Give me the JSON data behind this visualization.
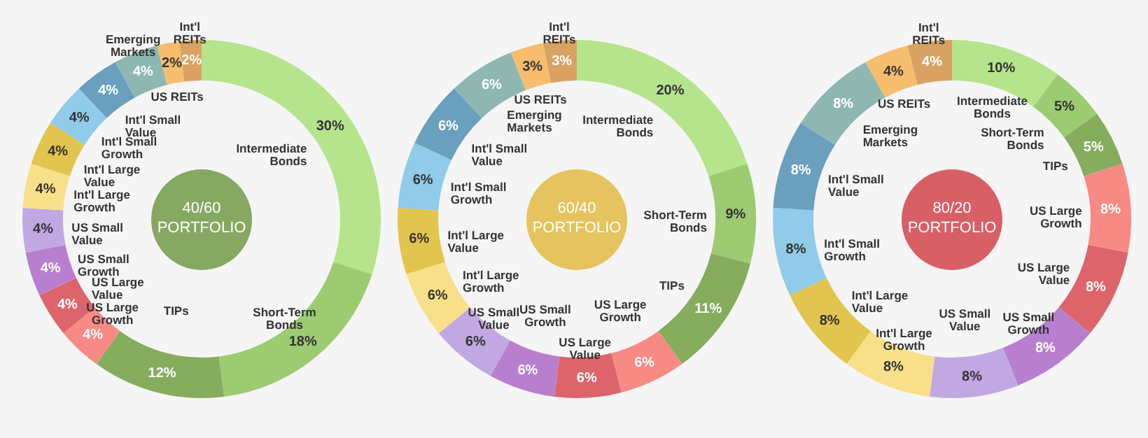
{
  "chart_data": [
    {
      "type": "donut",
      "title": "40/60",
      "subtitle": "PORTFOLIO",
      "categories": [
        "Intermediate Bonds",
        "Short-Term Bonds",
        "TIPs",
        "US Large Growth",
        "US Large Value",
        "US Small Growth",
        "US Small Value",
        "Int'l Large Growth",
        "Int'l Large Value",
        "Int'l Small Growth",
        "Int'l Small Value",
        "Emerging Markets",
        "US REITs",
        "Int'l REITs"
      ],
      "values": [
        30,
        18,
        12,
        4,
        4,
        4,
        4,
        4,
        4,
        4,
        4,
        4,
        2,
        2
      ],
      "value_labels": [
        "30%",
        "18%",
        "12%",
        "4%",
        "4%",
        "4%",
        "4%",
        "4%",
        "4%",
        "4%",
        "4%",
        "4%",
        "2%",
        "2%"
      ],
      "colors": [
        "#b5e48c",
        "#9dcb72",
        "#86ad5e",
        "#f78a85",
        "#dd646b",
        "#b97fcf",
        "#c2a8e3",
        "#f8e08a",
        "#e2c54e",
        "#90cbe9",
        "#6a9fbd",
        "#8fb7b2",
        "#f6bd6e",
        "#d9a262"
      ]
    },
    {
      "type": "donut",
      "title": "60/40",
      "subtitle": "PORTFOLIO",
      "categories": [
        "Intermediate Bonds",
        "Short-Term Bonds",
        "TIPs",
        "US Large Growth",
        "US Large Value",
        "US Small Growth",
        "US Small Value",
        "Int'l Large Growth",
        "Int'l Large Value",
        "Int'l Small Growth",
        "Int'l Small Value",
        "Emerging Markets",
        "US REITs",
        "Int'l REITs"
      ],
      "values": [
        20,
        9,
        11,
        6,
        6,
        6,
        6,
        6,
        6,
        6,
        6,
        6,
        3,
        3
      ],
      "value_labels": [
        "20%",
        "9%",
        "11%",
        "6%",
        "6%",
        "6%",
        "6%",
        "6%",
        "6%",
        "6%",
        "6%",
        "6%",
        "3%",
        "3%"
      ],
      "colors": [
        "#b5e48c",
        "#9dcb72",
        "#86ad5e",
        "#f78a85",
        "#dd646b",
        "#b97fcf",
        "#c2a8e3",
        "#f8e08a",
        "#e2c54e",
        "#90cbe9",
        "#6a9fbd",
        "#8fb7b2",
        "#f6bd6e",
        "#d9a262"
      ]
    },
    {
      "type": "donut",
      "title": "80/20",
      "subtitle": "PORTFOLIO",
      "categories": [
        "Intermediate Bonds",
        "Short-Term Bonds",
        "TIPs",
        "US Large Growth",
        "US Large Value",
        "US Small Growth",
        "US Small Value",
        "Int'l Large Growth",
        "Int'l Large Value",
        "Int'l Small Growth",
        "Int'l Small Value",
        "Emerging Markets",
        "US REITs",
        "Int'l REITs"
      ],
      "values": [
        10,
        5,
        5,
        8,
        8,
        8,
        8,
        8,
        8,
        8,
        8,
        8,
        4,
        4
      ],
      "value_labels": [
        "10%",
        "5%",
        "5%",
        "8%",
        "8%",
        "8%",
        "8%",
        "8%",
        "8%",
        "8%",
        "8%",
        "8%",
        "4%",
        "4%"
      ],
      "colors": [
        "#b5e48c",
        "#9dcb72",
        "#86ad5e",
        "#f78a85",
        "#dd646b",
        "#b97fcf",
        "#c2a8e3",
        "#f8e08a",
        "#e2c54e",
        "#90cbe9",
        "#6a9fbd",
        "#8fb7b2",
        "#f6bd6e",
        "#d9a262"
      ]
    }
  ]
}
